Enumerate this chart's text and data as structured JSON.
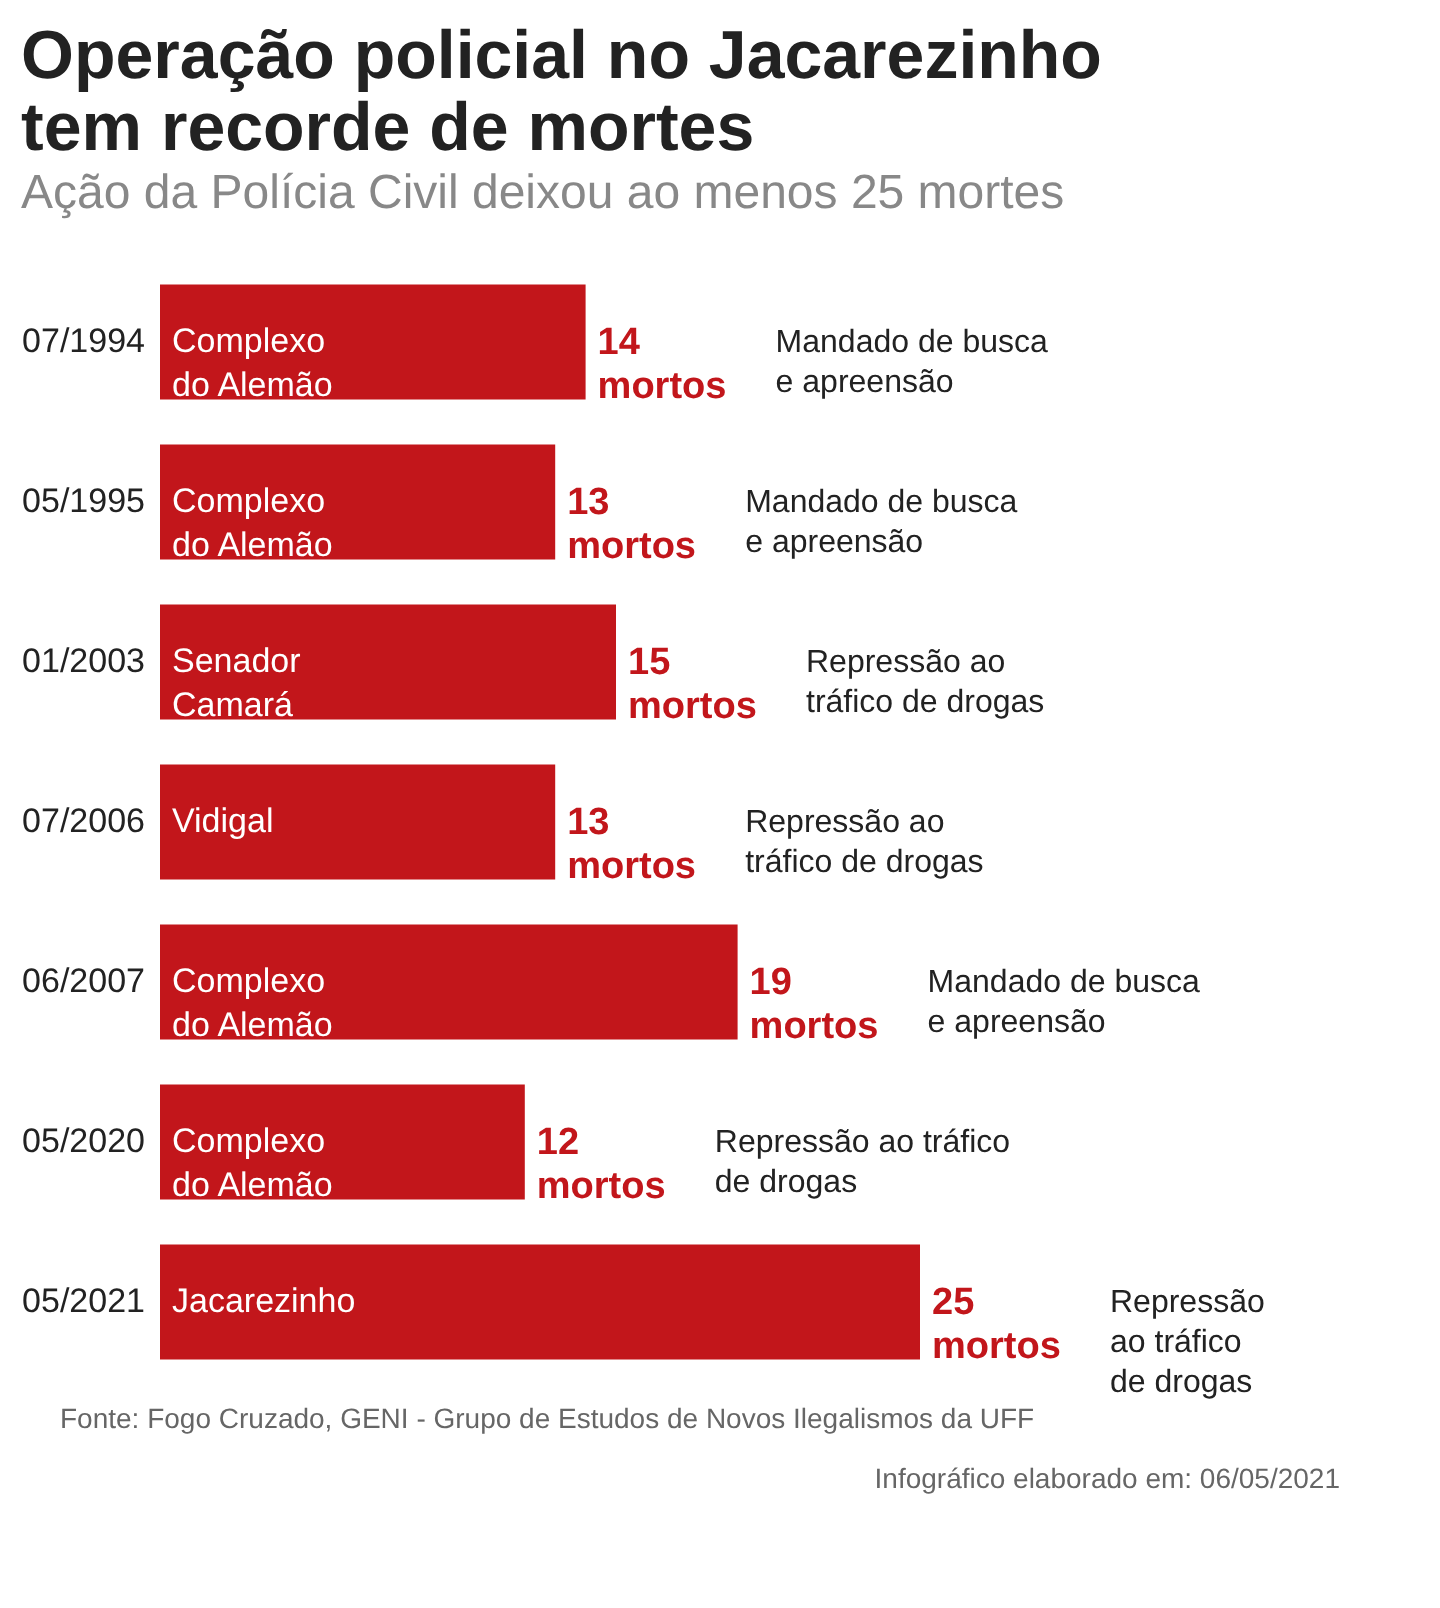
{
  "chart_data": {
    "type": "bar",
    "orientation": "horizontal",
    "title": "Operação policial no Jacarezinho\ntem recorde de mortes",
    "subtitle": "Ação da Polícia Civil deixou ao menos 25 mortes",
    "categories": [
      "07/1994",
      "05/1995",
      "01/2003",
      "07/2006",
      "06/2007",
      "05/2020",
      "05/2021"
    ],
    "values": [
      14,
      13,
      15,
      13,
      19,
      12,
      25
    ],
    "color": "#c2161b",
    "value_labels": [
      "14\nmortos",
      "13\nmortos",
      "15\nmortos",
      "13\nmortos",
      "19\nmortos",
      "12\nmortos",
      "25\nmortos"
    ],
    "tick_labels": "y",
    "annotations": [
      "Complexo\ndo Alemão",
      "Complexo\ndo Alemão",
      "Senador\nCamará",
      "Vidigal",
      "Complexo\ndo Alemão",
      "Complexo\ndo Alemão",
      "Jacarezinho",
      "Mandado de busca\ne apreensão",
      "Mandado de busca\ne apreensão",
      "Repressão ao\ntráfico de drogas",
      "Repressão ao\ntráfico de drogas",
      "Mandado de busca\ne apreensão",
      "Repressão ao tráfico\nde drogas",
      "Repressão\nao tráfico\nde drogas",
      "Fonte: Fogo Cruzado, GENI - Grupo de Estudos de Novos Ilegalismos da UFF",
      "Infográfico elaborado em: 06/05/2021"
    ]
  }
}
